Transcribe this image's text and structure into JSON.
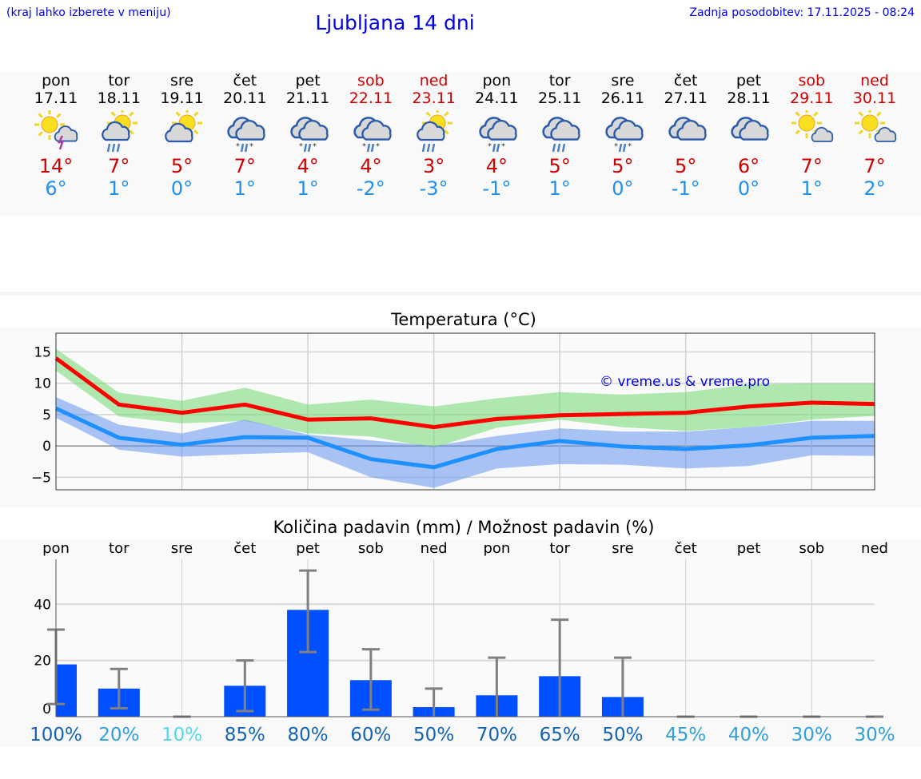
{
  "header": {
    "hint": "(kraj lahko izberete v meniju)",
    "title": "Ljubljana 14 dni",
    "updated": "Zadnja posodobitev: 17.11.2025 - 08:24"
  },
  "days": [
    {
      "name": "pon",
      "date": "17.11",
      "icon": "sun-cloud-thunder",
      "max": "14°",
      "min": "6°",
      "weekend": false
    },
    {
      "name": "tor",
      "date": "18.11",
      "icon": "sun-cloud-rain",
      "max": "7°",
      "min": "1°",
      "weekend": false
    },
    {
      "name": "sre",
      "date": "19.11",
      "icon": "sun-cloud",
      "max": "5°",
      "min": "0°",
      "weekend": false
    },
    {
      "name": "čet",
      "date": "20.11",
      "icon": "clouds-sleet",
      "max": "7°",
      "min": "1°",
      "weekend": false
    },
    {
      "name": "pet",
      "date": "21.11",
      "icon": "clouds-sleet",
      "max": "4°",
      "min": "1°",
      "weekend": false
    },
    {
      "name": "sob",
      "date": "22.11",
      "icon": "clouds-sleet",
      "max": "4°",
      "min": "-2°",
      "weekend": true
    },
    {
      "name": "ned",
      "date": "23.11",
      "icon": "sun-cloud-rain",
      "max": "3°",
      "min": "-3°",
      "weekend": true
    },
    {
      "name": "pon",
      "date": "24.11",
      "icon": "clouds-sleet",
      "max": "4°",
      "min": "-1°",
      "weekend": false
    },
    {
      "name": "tor",
      "date": "25.11",
      "icon": "clouds-rain",
      "max": "5°",
      "min": "1°",
      "weekend": false
    },
    {
      "name": "sre",
      "date": "26.11",
      "icon": "clouds-sleet",
      "max": "5°",
      "min": "0°",
      "weekend": false
    },
    {
      "name": "čet",
      "date": "27.11",
      "icon": "clouds",
      "max": "5°",
      "min": "-1°",
      "weekend": false
    },
    {
      "name": "pet",
      "date": "28.11",
      "icon": "clouds",
      "max": "6°",
      "min": "0°",
      "weekend": false
    },
    {
      "name": "sob",
      "date": "29.11",
      "icon": "sun-small-cloud",
      "max": "7°",
      "min": "1°",
      "weekend": true
    },
    {
      "name": "ned",
      "date": "30.11",
      "icon": "sun-small-cloud",
      "max": "7°",
      "min": "2°",
      "weekend": true
    }
  ],
  "watermark": "© vreme.us & vreme.pro",
  "chart_data": [
    {
      "type": "line",
      "title": "Temperatura (°C)",
      "ylim": [
        -7,
        18
      ],
      "yticks": [
        "15",
        "10",
        "5",
        "0",
        "−5"
      ],
      "ytick_values": [
        15,
        10,
        5,
        0,
        -5
      ],
      "grid": true,
      "x": [
        "17.11",
        "18.11",
        "19.11",
        "20.11",
        "21.11",
        "22.11",
        "23.11",
        "24.11",
        "25.11",
        "26.11",
        "27.11",
        "28.11",
        "29.11",
        "30.11"
      ],
      "series": [
        {
          "values": [
            14,
            6.6,
            5.3,
            6.6,
            4.2,
            4.4,
            3,
            4.3,
            4.9,
            5.1,
            5.3,
            6.3,
            6.9,
            6.7
          ],
          "color": "#ff0000",
          "band_max": [
            15.5,
            8.5,
            7.2,
            9.3,
            6.6,
            7.4,
            6.3,
            7.6,
            8.6,
            8.2,
            8.6,
            9.8,
            10,
            10
          ],
          "band_min": [
            12,
            4.7,
            3.6,
            4,
            2,
            1.5,
            -0.3,
            2.9,
            4.2,
            3,
            2.4,
            3,
            4.2,
            4.8
          ],
          "band_color": "#70d870"
        },
        {
          "values": [
            6,
            1.3,
            0.2,
            1.4,
            1.3,
            -2.1,
            -3.4,
            -0.5,
            0.8,
            -0.1,
            -0.5,
            0.1,
            1.3,
            1.6
          ],
          "color": "#1e90ff",
          "band_max": [
            7.8,
            3.4,
            2,
            4.2,
            1.8,
            0.9,
            0,
            1.6,
            2.8,
            2.3,
            2.3,
            3,
            4,
            4
          ],
          "band_min": [
            4.5,
            -0.6,
            -1.7,
            -1.3,
            -1,
            -5,
            -6.7,
            -3.6,
            -2.9,
            -3,
            -3.6,
            -3.2,
            -1.5,
            -1.6
          ],
          "band_color": "#6495ed"
        }
      ]
    },
    {
      "type": "bar",
      "title": "Količina padavin (mm) / Možnost padavin (%)",
      "ylim": [
        0,
        56
      ],
      "yticks": [
        "40",
        "20",
        "0"
      ],
      "ytick_values": [
        40,
        20,
        0
      ],
      "grid": true,
      "categories": [
        "pon",
        "tor",
        "sre",
        "čet",
        "pet",
        "sob",
        "ned",
        "pon",
        "tor",
        "sre",
        "čet",
        "pet",
        "sob",
        "ned"
      ],
      "values": [
        18.6,
        10,
        0,
        11,
        38,
        13,
        3.4,
        7.6,
        14.4,
        7,
        0,
        0,
        0,
        0
      ],
      "err_min": [
        4.5,
        3,
        0,
        2,
        23,
        2.5,
        0,
        0,
        0,
        0,
        0,
        0,
        0,
        0
      ],
      "err_max": [
        31,
        17,
        0,
        20,
        52,
        24,
        10,
        21,
        34.5,
        21,
        0,
        0,
        0,
        0
      ],
      "bar_color": "#0050ff",
      "probability": [
        "100%",
        "20%",
        "10%",
        "85%",
        "80%",
        "60%",
        "50%",
        "70%",
        "65%",
        "50%",
        "45%",
        "40%",
        "30%",
        "30%"
      ],
      "probability_colors": [
        "#1464b4",
        "#30a0dc",
        "#50d8e8",
        "#1464b4",
        "#1464b4",
        "#1464b4",
        "#1464b4",
        "#1464b4",
        "#1464b4",
        "#1464b4",
        "#30a0dc",
        "#30a0dc",
        "#30a0dc",
        "#30a0dc"
      ]
    }
  ]
}
